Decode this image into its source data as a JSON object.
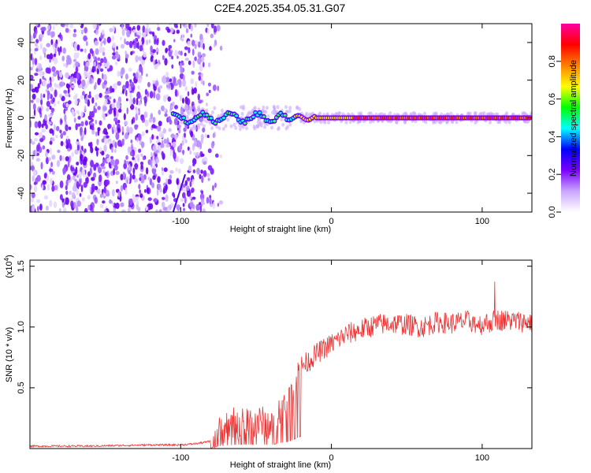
{
  "title": "C2E4.2025.354.05.31.G07",
  "chart_data": [
    {
      "type": "heatmap",
      "name": "spectrogram",
      "xlabel": "Height of straight line (km)",
      "ylabel": "Frequency (Hz)",
      "xlim": [
        -200,
        133
      ],
      "ylim": [
        -50,
        50
      ],
      "x_ticks": [
        -100,
        0,
        100
      ],
      "y_ticks": [
        -40,
        -20,
        0,
        20,
        40
      ],
      "ridge": {
        "frequency_hz": 0,
        "start_km": -105,
        "end_km": 133
      },
      "noise_region_km": [
        -200,
        -85
      ],
      "colorbar": {
        "label": "Normalized spectral amplitude",
        "range": [
          0,
          1
        ],
        "ticks": [
          0.0,
          0.2,
          0.4,
          0.6,
          0.8
        ],
        "tick_labels": [
          "0.0",
          "0.2",
          "0.4",
          "0.6",
          "0.8"
        ],
        "colors": [
          "#ffffff",
          "#c9a6ff",
          "#7a00ff",
          "#0000ff",
          "#00ffff",
          "#00ff00",
          "#ffff00",
          "#ff8000",
          "#ff0000",
          "#ff00a0"
        ]
      }
    },
    {
      "type": "line",
      "name": "snr",
      "xlabel": "Height of straight line (km)",
      "ylabel": "SNR (10 * v/v)",
      "scale_label": "(x10",
      "scale_exponent": "4",
      "xlim": [
        -200,
        133
      ],
      "ylim": [
        0,
        1.55
      ],
      "x_ticks": [
        -100,
        0,
        100
      ],
      "y_ticks": [
        0.5,
        1.0,
        1.5
      ],
      "y_tick_labels": [
        "0.5",
        "1.0",
        "1.5"
      ],
      "color": "#ee3333",
      "x": [
        -200,
        -180,
        -160,
        -140,
        -120,
        -100,
        -90,
        -80,
        -70,
        -60,
        -50,
        -40,
        -35,
        -30,
        -25,
        -20,
        -15,
        -10,
        -5,
        0,
        10,
        20,
        30,
        40,
        50,
        60,
        70,
        80,
        90,
        100,
        110,
        120,
        133
      ],
      "values": [
        0.02,
        0.02,
        0.02,
        0.025,
        0.03,
        0.03,
        0.04,
        0.06,
        0.18,
        0.22,
        0.22,
        0.2,
        0.3,
        0.35,
        0.5,
        0.68,
        0.72,
        0.78,
        0.82,
        0.86,
        0.94,
        0.98,
        1.02,
        1.03,
        1.02,
        1.0,
        1.04,
        1.03,
        1.05,
        1.02,
        1.06,
        1.05,
        1.04
      ]
    }
  ]
}
